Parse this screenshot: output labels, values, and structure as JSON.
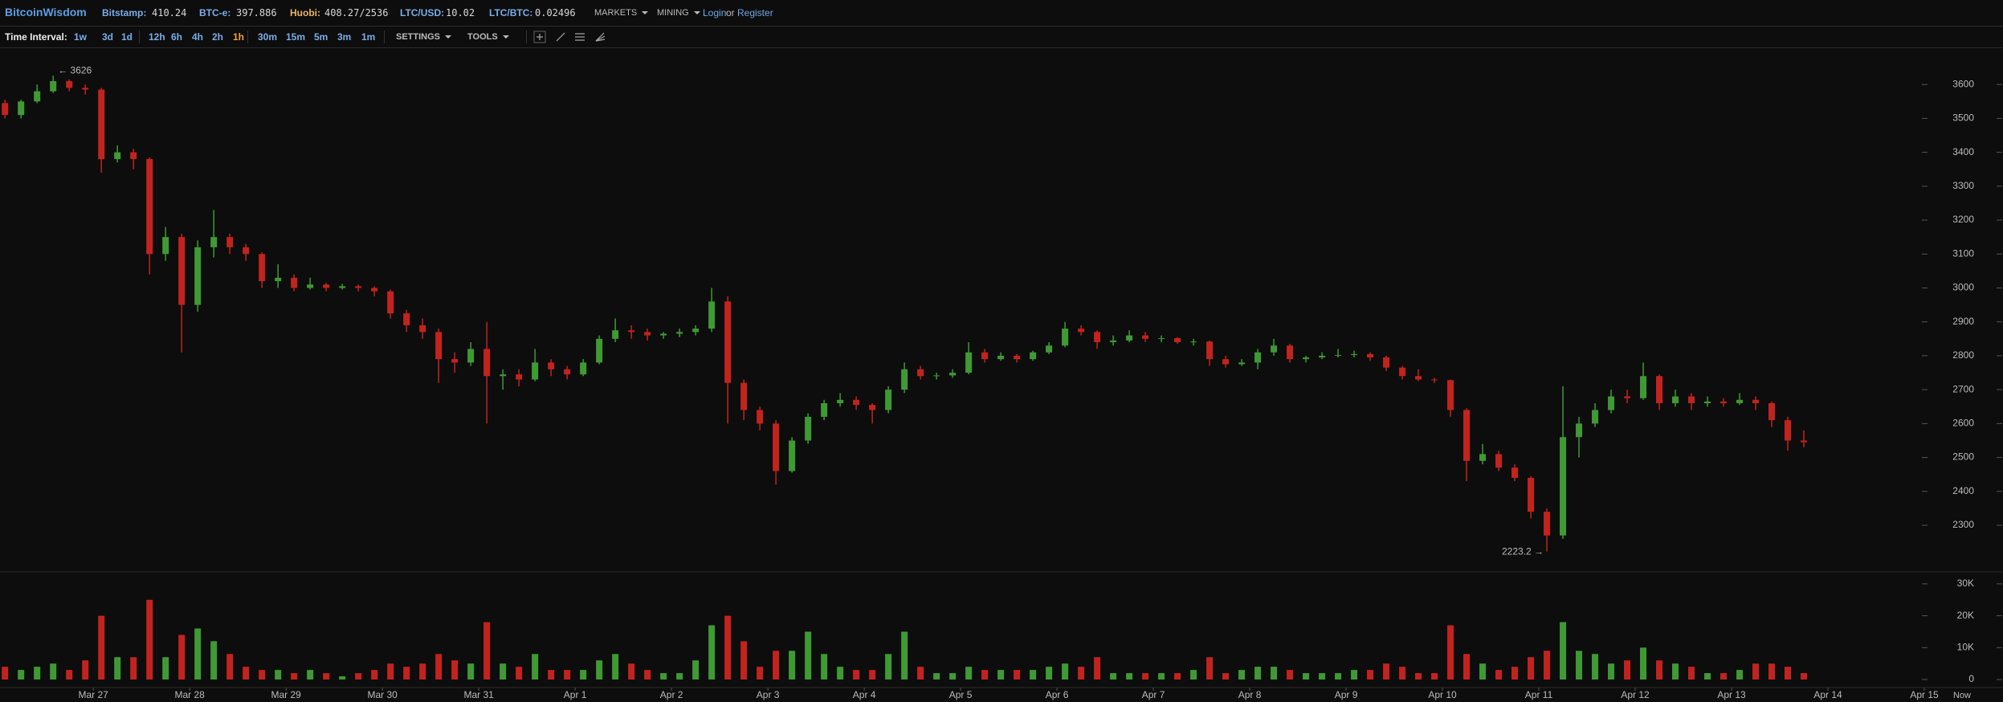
{
  "header": {
    "logo": "BitcoinWisdom",
    "tickers": [
      {
        "label": "Bitstamp:",
        "value": "410.24",
        "color": "#79aee8"
      },
      {
        "label": "BTC-e:",
        "value": "397.886",
        "color": "#79aee8"
      },
      {
        "label": "Huobi:",
        "value": "408.27/2536",
        "color": "#e9b46a"
      },
      {
        "label": "LTC/USD:",
        "value": "10.02",
        "color": "#79aee8"
      },
      {
        "label": "LTC/BTC:",
        "value": "0.02496",
        "color": "#79aee8"
      }
    ],
    "menus": [
      "MARKETS",
      "MINING"
    ],
    "login": "Login",
    "or": "or",
    "register": "Register"
  },
  "toolbar": {
    "label": "Time Interval:",
    "intervals": [
      "1w",
      "3d",
      "1d",
      "12h",
      "6h",
      "4h",
      "2h",
      "1h",
      "30m",
      "15m",
      "5m",
      "3m",
      "1m"
    ],
    "active_interval": "1h",
    "settings": "SETTINGS",
    "tools": "TOOLS"
  },
  "chart_data": {
    "type": "candlestick",
    "up_color": "#3f9a34",
    "down_color": "#c3231e",
    "ohlc": [
      [
        3545,
        3555,
        3500,
        3510
      ],
      [
        3510,
        3555,
        3500,
        3550
      ],
      [
        3550,
        3600,
        3545,
        3580
      ],
      [
        3580,
        3626,
        3575,
        3610
      ],
      [
        3610,
        3615,
        3580,
        3590
      ],
      [
        3590,
        3600,
        3570,
        3585
      ],
      [
        3585,
        3590,
        3340,
        3380
      ],
      [
        3380,
        3420,
        3370,
        3400
      ],
      [
        3400,
        3410,
        3350,
        3380
      ],
      [
        3380,
        3385,
        3040,
        3100
      ],
      [
        3100,
        3180,
        3080,
        3150
      ],
      [
        3150,
        3160,
        2810,
        2950
      ],
      [
        2950,
        3140,
        2930,
        3120
      ],
      [
        3120,
        3230,
        3090,
        3150
      ],
      [
        3150,
        3160,
        3100,
        3120
      ],
      [
        3120,
        3130,
        3080,
        3100
      ],
      [
        3100,
        3105,
        3000,
        3020
      ],
      [
        3020,
        3070,
        3000,
        3030
      ],
      [
        3030,
        3040,
        2990,
        3000
      ],
      [
        3000,
        3030,
        2995,
        3010
      ],
      [
        3010,
        3015,
        2990,
        3000
      ],
      [
        3000,
        3012,
        2995,
        3005
      ],
      [
        3005,
        3010,
        2990,
        3000
      ],
      [
        3000,
        3005,
        2975,
        2990
      ],
      [
        2990,
        2995,
        2910,
        2925
      ],
      [
        2925,
        2935,
        2870,
        2890
      ],
      [
        2890,
        2910,
        2850,
        2870
      ],
      [
        2870,
        2880,
        2720,
        2790
      ],
      [
        2790,
        2810,
        2750,
        2780
      ],
      [
        2780,
        2840,
        2770,
        2820
      ],
      [
        2820,
        2900,
        2600,
        2740
      ],
      [
        2740,
        2760,
        2700,
        2745
      ],
      [
        2745,
        2760,
        2710,
        2730
      ],
      [
        2730,
        2820,
        2725,
        2780
      ],
      [
        2780,
        2790,
        2740,
        2760
      ],
      [
        2760,
        2770,
        2730,
        2745
      ],
      [
        2745,
        2790,
        2740,
        2780
      ],
      [
        2780,
        2860,
        2775,
        2850
      ],
      [
        2850,
        2910,
        2840,
        2875
      ],
      [
        2875,
        2890,
        2850,
        2870
      ],
      [
        2870,
        2880,
        2845,
        2860
      ],
      [
        2860,
        2870,
        2850,
        2865
      ],
      [
        2865,
        2880,
        2855,
        2870
      ],
      [
        2870,
        2890,
        2860,
        2880
      ],
      [
        2880,
        3000,
        2870,
        2960
      ],
      [
        2960,
        2975,
        2600,
        2720
      ],
      [
        2720,
        2730,
        2610,
        2640
      ],
      [
        2640,
        2650,
        2580,
        2600
      ],
      [
        2600,
        2610,
        2420,
        2460
      ],
      [
        2460,
        2560,
        2455,
        2550
      ],
      [
        2550,
        2630,
        2540,
        2620
      ],
      [
        2620,
        2670,
        2610,
        2660
      ],
      [
        2660,
        2690,
        2650,
        2670
      ],
      [
        2670,
        2680,
        2640,
        2655
      ],
      [
        2655,
        2660,
        2600,
        2640
      ],
      [
        2640,
        2710,
        2630,
        2700
      ],
      [
        2700,
        2780,
        2690,
        2760
      ],
      [
        2760,
        2770,
        2730,
        2740
      ],
      [
        2740,
        2750,
        2730,
        2742
      ],
      [
        2742,
        2760,
        2735,
        2750
      ],
      [
        2750,
        2840,
        2745,
        2810
      ],
      [
        2810,
        2820,
        2780,
        2790
      ],
      [
        2790,
        2810,
        2785,
        2800
      ],
      [
        2800,
        2805,
        2780,
        2790
      ],
      [
        2790,
        2815,
        2785,
        2810
      ],
      [
        2810,
        2840,
        2805,
        2830
      ],
      [
        2830,
        2900,
        2825,
        2880
      ],
      [
        2880,
        2890,
        2860,
        2870
      ],
      [
        2870,
        2875,
        2820,
        2840
      ],
      [
        2840,
        2860,
        2830,
        2845
      ],
      [
        2845,
        2875,
        2840,
        2860
      ],
      [
        2860,
        2870,
        2840,
        2850
      ],
      [
        2850,
        2860,
        2840,
        2852
      ],
      [
        2852,
        2855,
        2835,
        2840
      ],
      [
        2840,
        2850,
        2830,
        2842
      ],
      [
        2842,
        2845,
        2770,
        2790
      ],
      [
        2790,
        2800,
        2765,
        2775
      ],
      [
        2775,
        2790,
        2770,
        2780
      ],
      [
        2780,
        2820,
        2760,
        2810
      ],
      [
        2810,
        2850,
        2800,
        2830
      ],
      [
        2830,
        2835,
        2780,
        2790
      ],
      [
        2790,
        2800,
        2780,
        2795
      ],
      [
        2795,
        2810,
        2790,
        2800
      ],
      [
        2800,
        2820,
        2795,
        2802
      ],
      [
        2802,
        2815,
        2795,
        2805
      ],
      [
        2805,
        2810,
        2785,
        2795
      ],
      [
        2795,
        2800,
        2755,
        2765
      ],
      [
        2765,
        2770,
        2730,
        2740
      ],
      [
        2740,
        2760,
        2725,
        2730
      ],
      [
        2730,
        2735,
        2720,
        2728
      ],
      [
        2728,
        2730,
        2620,
        2640
      ],
      [
        2640,
        2645,
        2430,
        2490
      ],
      [
        2490,
        2540,
        2480,
        2510
      ],
      [
        2510,
        2520,
        2460,
        2470
      ],
      [
        2470,
        2480,
        2430,
        2440
      ],
      [
        2440,
        2445,
        2320,
        2340
      ],
      [
        2340,
        2350,
        2223.2,
        2270
      ],
      [
        2270,
        2710,
        2260,
        2560
      ],
      [
        2560,
        2620,
        2500,
        2600
      ],
      [
        2600,
        2660,
        2590,
        2640
      ],
      [
        2640,
        2700,
        2630,
        2680
      ],
      [
        2680,
        2700,
        2660,
        2675
      ],
      [
        2675,
        2780,
        2670,
        2740
      ],
      [
        2740,
        2745,
        2640,
        2660
      ],
      [
        2660,
        2700,
        2650,
        2680
      ],
      [
        2680,
        2690,
        2640,
        2660
      ],
      [
        2660,
        2680,
        2650,
        2665
      ],
      [
        2665,
        2675,
        2650,
        2660
      ],
      [
        2660,
        2690,
        2655,
        2670
      ],
      [
        2670,
        2680,
        2640,
        2660
      ],
      [
        2660,
        2665,
        2590,
        2610
      ],
      [
        2610,
        2620,
        2520,
        2550
      ],
      [
        2550,
        2580,
        2530,
        2545
      ]
    ],
    "max_label": "← 3626",
    "min_label": "2223.2 →",
    "xlim": [
      0.19,
      124.9
    ],
    "xticks": [
      {
        "value": 6,
        "label": "Mar 27"
      },
      {
        "value": 12,
        "label": "Mar 28"
      },
      {
        "value": 18,
        "label": "Mar 29"
      },
      {
        "value": 24,
        "label": "Mar 30"
      },
      {
        "value": 30,
        "label": "Mar 31"
      },
      {
        "value": 36,
        "label": "Apr 1"
      },
      {
        "value": 42,
        "label": "Apr 2"
      },
      {
        "value": 48,
        "label": "Apr 3"
      },
      {
        "value": 54,
        "label": "Apr 4"
      },
      {
        "value": 60,
        "label": "Apr 5"
      },
      {
        "value": 66,
        "label": "Apr 6"
      },
      {
        "value": 72,
        "label": "Apr 7"
      },
      {
        "value": 78,
        "label": "Apr 8"
      },
      {
        "value": 84,
        "label": "Apr 9"
      },
      {
        "value": 90,
        "label": "Apr 10"
      },
      {
        "value": 96,
        "label": "Apr 11"
      },
      {
        "value": 102,
        "label": "Apr 12"
      },
      {
        "value": 108,
        "label": "Apr 13"
      },
      {
        "value": 114,
        "label": "Apr 14"
      },
      {
        "value": 120,
        "label": "Apr 15"
      }
    ],
    "x_end_label": "Now",
    "ylim": [
      2165,
      3707
    ],
    "yticks": [
      2300,
      2400,
      2500,
      2600,
      2700,
      2800,
      2900,
      3000,
      3100,
      3200,
      3300,
      3400,
      3500,
      3600
    ],
    "volume": {
      "values": [
        4000,
        3000,
        4000,
        5000,
        3000,
        6000,
        20000,
        7000,
        7000,
        25000,
        7000,
        14000,
        16000,
        12000,
        8000,
        4000,
        3000,
        3000,
        2000,
        3000,
        2000,
        1000,
        2000,
        3000,
        5000,
        4000,
        5000,
        8000,
        6000,
        5000,
        18000,
        5000,
        4000,
        8000,
        3000,
        3000,
        3000,
        6000,
        8000,
        5000,
        3000,
        2000,
        2000,
        6000,
        17000,
        20000,
        12000,
        4000,
        9000,
        9000,
        15000,
        8000,
        4000,
        3000,
        3000,
        8000,
        15000,
        4000,
        2000,
        2000,
        4000,
        3000,
        3000,
        3000,
        3000,
        4000,
        5000,
        4000,
        7000,
        2000,
        2000,
        2000,
        2000,
        2000,
        3000,
        7000,
        2000,
        3000,
        4000,
        4000,
        3000,
        2000,
        2000,
        2000,
        3000,
        3000,
        5000,
        4000,
        2000,
        2000,
        17000,
        8000,
        5000,
        3000,
        4000,
        7000,
        9000,
        18000,
        9000,
        8000,
        5000,
        6000,
        10000,
        6000,
        5000,
        4000,
        2000,
        2000,
        3000,
        5000,
        5000,
        4000,
        2000
      ],
      "ylim": [
        0,
        33500
      ],
      "yticks": [
        0,
        {
          "value": 10000,
          "label": "10K"
        },
        {
          "value": 20000,
          "label": "20K"
        },
        {
          "value": 30000,
          "label": "30K"
        }
      ]
    }
  }
}
